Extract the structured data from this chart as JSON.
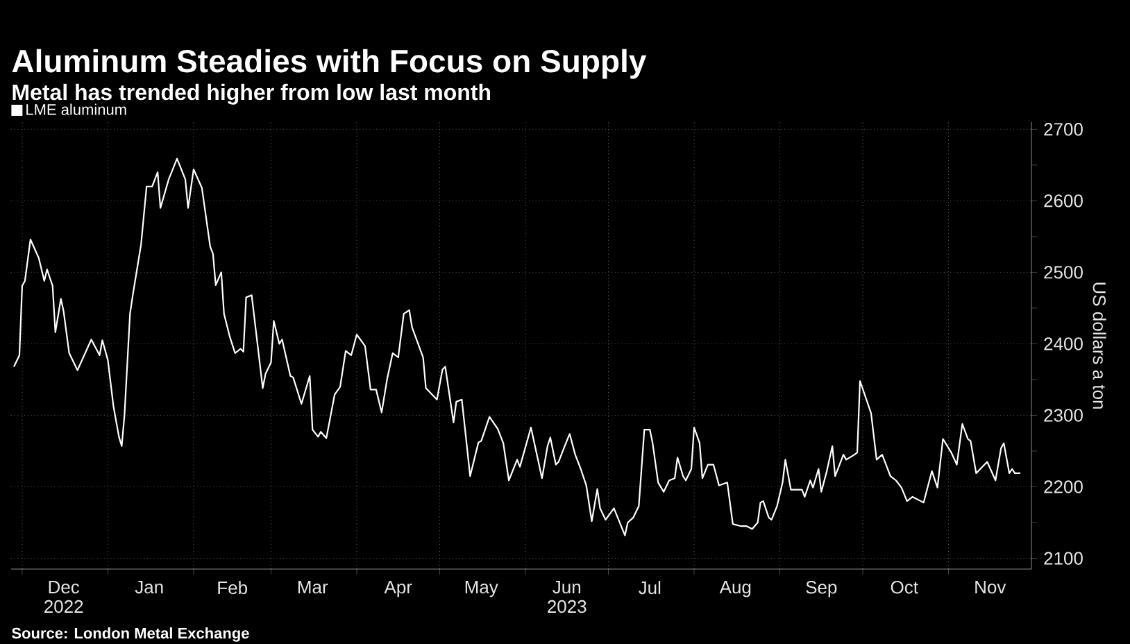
{
  "chart_data": {
    "type": "line",
    "title": "Aluminum Steadies with Focus on Supply",
    "subtitle": "Metal has trended higher from low last month",
    "ylabel": "US dollars a ton",
    "annotations": [
      "Source: London Metal Exchange"
    ],
    "x": [
      "2022-11-28",
      "2022-11-30",
      "2022-12-01",
      "2022-12-02",
      "2022-12-04",
      "2022-12-07",
      "2022-12-09",
      "2022-12-10",
      "2022-12-12",
      "2022-12-13",
      "2022-12-15",
      "2022-12-16",
      "2022-12-18",
      "2022-12-21",
      "2022-12-26",
      "2022-12-29",
      "2022-12-30",
      "2023-01-01",
      "2023-01-03",
      "2023-01-05",
      "2023-01-06",
      "2023-01-07",
      "2023-01-09",
      "2023-01-10",
      "2023-01-13",
      "2023-01-15",
      "2023-01-17",
      "2023-01-19",
      "2023-01-20",
      "2023-01-23",
      "2023-01-26",
      "2023-01-29",
      "2023-01-30",
      "2023-02-01",
      "2023-02-04",
      "2023-02-07",
      "2023-02-08",
      "2023-02-09",
      "2023-02-11",
      "2023-02-12",
      "2023-02-14",
      "2023-02-16",
      "2023-02-18",
      "2023-02-19",
      "2023-02-20",
      "2023-02-22",
      "2023-02-24",
      "2023-02-26",
      "2023-02-27",
      "2023-03-01",
      "2023-03-02",
      "2023-03-04",
      "2023-03-05",
      "2023-03-08",
      "2023-03-09",
      "2023-03-12",
      "2023-03-15",
      "2023-03-16",
      "2023-03-18",
      "2023-03-19",
      "2023-03-21",
      "2023-03-24",
      "2023-03-26",
      "2023-03-28",
      "2023-03-30",
      "2023-04-01",
      "2023-04-04",
      "2023-04-06",
      "2023-04-08",
      "2023-04-10",
      "2023-04-12",
      "2023-04-14",
      "2023-04-16",
      "2023-04-18",
      "2023-04-20",
      "2023-04-21",
      "2023-04-25",
      "2023-04-26",
      "2023-04-30",
      "2023-05-02",
      "2023-05-03",
      "2023-05-06",
      "2023-05-07",
      "2023-05-09",
      "2023-05-12",
      "2023-05-15",
      "2023-05-16",
      "2023-05-19",
      "2023-05-22",
      "2023-05-24",
      "2023-05-26",
      "2023-05-29",
      "2023-05-30",
      "2023-06-03",
      "2023-06-07",
      "2023-06-09",
      "2023-06-10",
      "2023-06-12",
      "2023-06-13",
      "2023-06-15",
      "2023-06-17",
      "2023-06-19",
      "2023-06-21",
      "2023-06-23",
      "2023-06-25",
      "2023-06-27",
      "2023-06-28",
      "2023-06-30",
      "2023-07-03",
      "2023-07-07",
      "2023-07-08",
      "2023-07-10",
      "2023-07-12",
      "2023-07-14",
      "2023-07-16",
      "2023-07-17",
      "2023-07-19",
      "2023-07-21",
      "2023-07-23",
      "2023-07-25",
      "2023-07-26",
      "2023-07-28",
      "2023-07-29",
      "2023-07-31",
      "2023-08-01",
      "2023-08-03",
      "2023-08-04",
      "2023-08-06",
      "2023-08-08",
      "2023-08-10",
      "2023-08-13",
      "2023-08-15",
      "2023-08-18",
      "2023-08-20",
      "2023-08-22",
      "2023-08-24",
      "2023-08-25",
      "2023-08-26",
      "2023-08-28",
      "2023-08-29",
      "2023-08-31",
      "2023-09-02",
      "2023-09-03",
      "2023-09-05",
      "2023-09-07",
      "2023-09-09",
      "2023-09-10",
      "2023-09-12",
      "2023-09-13",
      "2023-09-15",
      "2023-09-16",
      "2023-09-18",
      "2023-09-20",
      "2023-09-21",
      "2023-09-24",
      "2023-09-25",
      "2023-09-28",
      "2023-09-29",
      "2023-09-30",
      "2023-10-04",
      "2023-10-06",
      "2023-10-08",
      "2023-10-11",
      "2023-10-13",
      "2023-10-15",
      "2023-10-17",
      "2023-10-19",
      "2023-10-22",
      "2023-10-23",
      "2023-10-26",
      "2023-10-28",
      "2023-10-30",
      "2023-11-02",
      "2023-11-04",
      "2023-11-06",
      "2023-11-08",
      "2023-11-09",
      "2023-11-11",
      "2023-11-14",
      "2023-11-15",
      "2023-11-18",
      "2023-11-20",
      "2023-11-21",
      "2023-11-23",
      "2023-11-24",
      "2023-11-25",
      "2023-11-27"
    ],
    "series": [
      {
        "name": "LME aluminum",
        "color": "#ffffff",
        "values": [
          2368,
          2384,
          2481,
          2488,
          2546,
          2520,
          2488,
          2504,
          2481,
          2416,
          2463,
          2445,
          2387,
          2363,
          2406,
          2384,
          2405,
          2377,
          2313,
          2270,
          2257,
          2300,
          2442,
          2468,
          2539,
          2620,
          2620,
          2640,
          2590,
          2630,
          2659,
          2630,
          2590,
          2644,
          2618,
          2536,
          2526,
          2482,
          2500,
          2442,
          2411,
          2387,
          2393,
          2389,
          2465,
          2468,
          2403,
          2338,
          2358,
          2374,
          2432,
          2400,
          2406,
          2355,
          2353,
          2316,
          2355,
          2280,
          2270,
          2277,
          2268,
          2329,
          2340,
          2390,
          2384,
          2413,
          2397,
          2336,
          2336,
          2304,
          2351,
          2387,
          2381,
          2442,
          2447,
          2423,
          2381,
          2338,
          2322,
          2364,
          2368,
          2290,
          2319,
          2322,
          2215,
          2262,
          2264,
          2298,
          2281,
          2261,
          2209,
          2238,
          2228,
          2283,
          2212,
          2257,
          2269,
          2231,
          2235,
          2255,
          2274,
          2245,
          2225,
          2202,
          2152,
          2197,
          2170,
          2154,
          2170,
          2132,
          2150,
          2157,
          2173,
          2280,
          2280,
          2261,
          2206,
          2193,
          2209,
          2212,
          2241,
          2215,
          2209,
          2225,
          2283,
          2261,
          2212,
          2231,
          2231,
          2202,
          2206,
          2148,
          2145,
          2145,
          2141,
          2150,
          2178,
          2180,
          2157,
          2154,
          2173,
          2206,
          2238,
          2196,
          2196,
          2196,
          2186,
          2209,
          2199,
          2225,
          2193,
          2222,
          2257,
          2215,
          2245,
          2238,
          2245,
          2248,
          2348,
          2303,
          2238,
          2245,
          2215,
          2209,
          2199,
          2180,
          2186,
          2180,
          2178,
          2222,
          2199,
          2267,
          2248,
          2231,
          2288,
          2267,
          2264,
          2219,
          2231,
          2235,
          2209,
          2254,
          2261,
          2219,
          2225,
          2219,
          2219
        ]
      }
    ],
    "xlim": [
      "2022-11-27",
      "2023-12-01"
    ],
    "ylim": [
      2085,
      2710
    ],
    "xticks": [
      {
        "value": "2022-12-01",
        "label": null
      },
      {
        "value": "2022-12-16",
        "label": "Dec 2022"
      },
      {
        "value": "2023-01-01",
        "label": null
      },
      {
        "value": "2023-01-16",
        "label": "Jan"
      },
      {
        "value": "2023-02-01",
        "label": null
      },
      {
        "value": "2023-02-15",
        "label": "Feb"
      },
      {
        "value": "2023-03-01",
        "label": null
      },
      {
        "value": "2023-03-16",
        "label": "Mar"
      },
      {
        "value": "2023-04-01",
        "label": null
      },
      {
        "value": "2023-04-16",
        "label": "Apr"
      },
      {
        "value": "2023-05-01",
        "label": null
      },
      {
        "value": "2023-05-16",
        "label": "May"
      },
      {
        "value": "2023-06-01",
        "label": null
      },
      {
        "value": "2023-06-16",
        "label": "Jun 2023"
      },
      {
        "value": "2023-07-01",
        "label": null
      },
      {
        "value": "2023-07-16",
        "label": "Jul"
      },
      {
        "value": "2023-08-01",
        "label": null
      },
      {
        "value": "2023-08-16",
        "label": "Aug"
      },
      {
        "value": "2023-09-01",
        "label": null
      },
      {
        "value": "2023-09-16",
        "label": "Sep"
      },
      {
        "value": "2023-10-01",
        "label": null
      },
      {
        "value": "2023-10-16",
        "label": "Oct"
      },
      {
        "value": "2023-11-01",
        "label": null
      },
      {
        "value": "2023-11-16",
        "label": "Nov"
      }
    ],
    "yticks": [
      2100,
      {
        "value": 2150,
        "label": null
      },
      2200,
      {
        "value": 2250,
        "label": null
      },
      2300,
      {
        "value": 2350,
        "label": null
      },
      2400,
      {
        "value": 2450,
        "label": null
      },
      2500,
      {
        "value": 2550,
        "label": null
      },
      2600,
      {
        "value": 2650,
        "label": null
      },
      2700
    ],
    "grid": true,
    "legend": "top left"
  }
}
